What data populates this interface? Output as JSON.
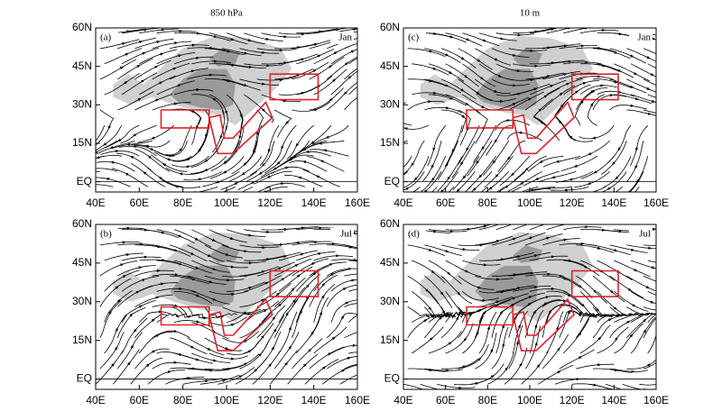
{
  "columns": [
    "850 hPa",
    "10 m"
  ],
  "panels": [
    {
      "label": "(a)",
      "month": "Jan"
    },
    {
      "label": "(b)",
      "month": "Jul"
    },
    {
      "label": "(c)",
      "month": "Jan"
    },
    {
      "label": "(d)",
      "month": "Jul"
    }
  ],
  "xlim": [
    40,
    160
  ],
  "ylim": [
    -4,
    60
  ],
  "xticks": [
    {
      "value": 40,
      "label": "40E"
    },
    {
      "value": 60,
      "label": "60E"
    },
    {
      "value": 80,
      "label": "80E"
    },
    {
      "value": 100,
      "label": "100E"
    },
    {
      "value": 120,
      "label": "120E"
    },
    {
      "value": 140,
      "label": "140E"
    },
    {
      "value": 160,
      "label": "160E"
    }
  ],
  "yticks": [
    {
      "value": 0,
      "label": "EQ"
    },
    {
      "value": 15,
      "label": "15N"
    },
    {
      "value": 30,
      "label": "30N"
    },
    {
      "value": 45,
      "label": "45N"
    },
    {
      "value": 60,
      "label": "60N"
    }
  ]
}
